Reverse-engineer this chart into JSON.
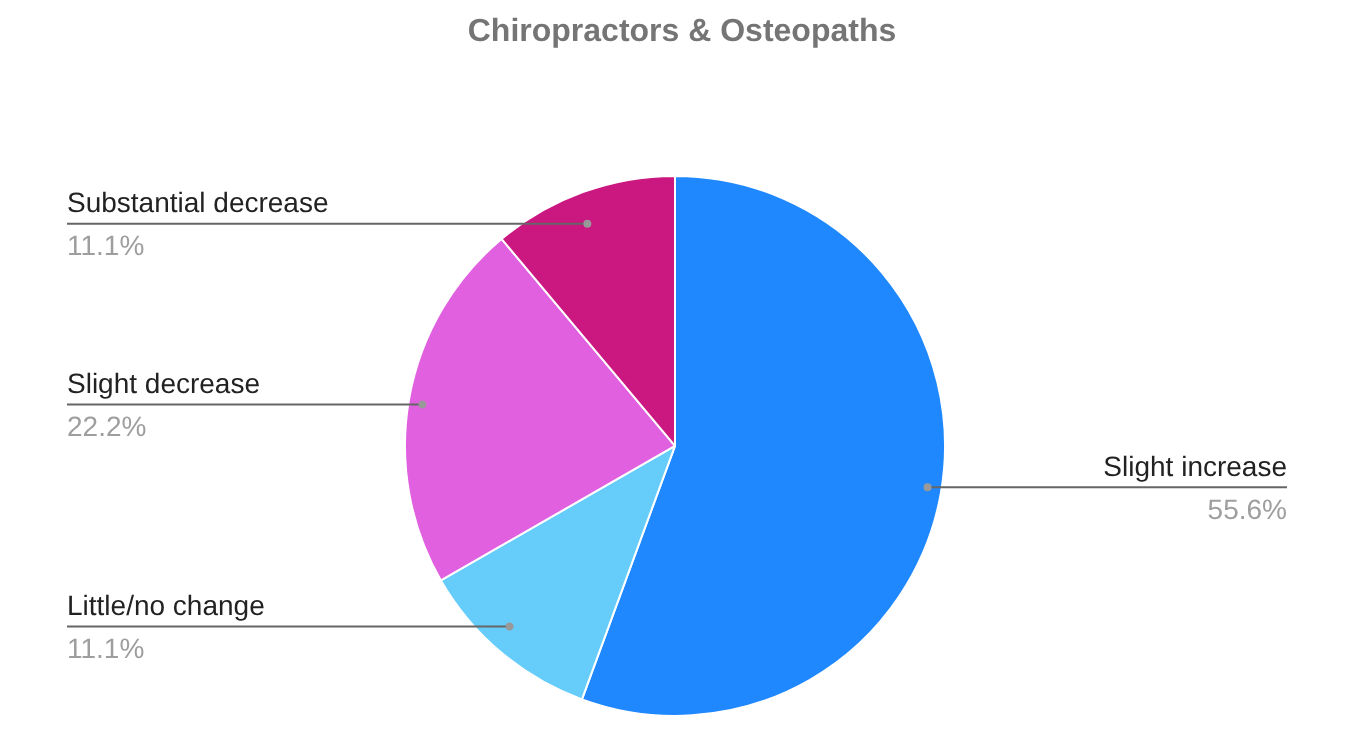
{
  "chart_data": {
    "type": "pie",
    "title": "Chiropractors & Osteopaths",
    "categories": [
      "Slight increase",
      "Little/no change",
      "Slight decrease",
      "Substantial decrease"
    ],
    "values": [
      55.6,
      11.1,
      22.2,
      11.1
    ],
    "colors": [
      "#1f88fe",
      "#66ccfa",
      "#e060e0",
      "#cb1780"
    ],
    "value_labels": [
      "55.6%",
      "11.1%",
      "22.2%",
      "11.1%"
    ],
    "legend": false
  }
}
